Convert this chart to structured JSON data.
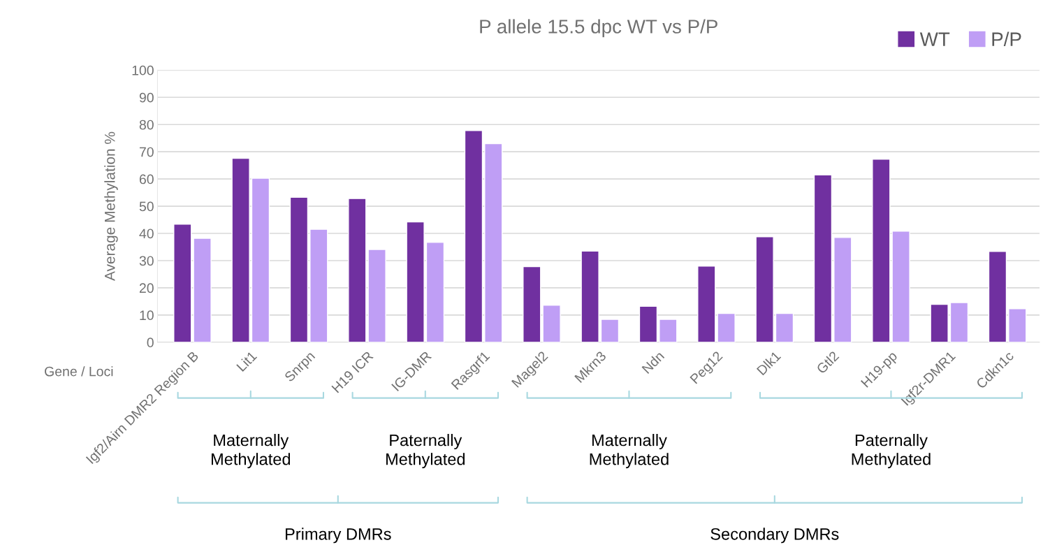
{
  "chart_data": {
    "type": "bar",
    "title": "P allele 15.5 dpc WT vs P/P",
    "ylabel": "Average Methylation %",
    "xlabel": "Gene / Loci",
    "categories": [
      "Igf2/Airn DMR2 Region B",
      "Lit1",
      "Snrpn",
      "H19 ICR",
      "IG-DMR",
      "Rasgrf1",
      "Magel2",
      "Mkrn3",
      "Ndn",
      "Peg12",
      "Dlk1",
      "Gtl2",
      "H19-pp",
      "Igf2r-DMR1",
      "Cdkn1c"
    ],
    "series": [
      {
        "name": "WT",
        "color": "#7030a0",
        "values": [
          43.4,
          67.6,
          53.3,
          52.8,
          44.2,
          77.8,
          27.8,
          33.5,
          13.2,
          28.0,
          38.8,
          61.5,
          67.3,
          13.9,
          33.4
        ]
      },
      {
        "name": "P/P",
        "color": "#bf9ef5",
        "values": [
          38.2,
          60.3,
          41.5,
          34.1,
          36.7,
          73.0,
          13.6,
          8.4,
          8.4,
          10.6,
          10.6,
          38.5,
          40.8,
          14.6,
          12.3
        ]
      }
    ],
    "ylim": [
      0,
      100
    ],
    "yticks": [
      0,
      10,
      20,
      30,
      40,
      50,
      60,
      70,
      80,
      90,
      100
    ],
    "grid": "y",
    "legend": "top right",
    "annotations": [
      "Maternally\nMethylated",
      "Paternally\nMethylated",
      "Maternally\nMethylated",
      "Paternally\nMethylated",
      "Primary DMRs",
      "Secondary DMRs"
    ]
  }
}
